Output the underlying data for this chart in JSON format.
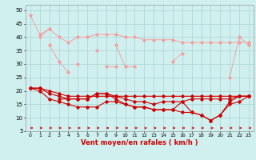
{
  "title": "",
  "xlabel": "Vent moyen/en rafales ( km/h )",
  "ylabel": "",
  "background_color": "#d0f0f0",
  "grid_color": "#b0d8d8",
  "x": [
    0,
    1,
    2,
    3,
    4,
    5,
    6,
    7,
    8,
    9,
    10,
    11,
    12,
    13,
    14,
    15,
    16,
    17,
    18,
    19,
    20,
    21,
    22,
    23
  ],
  "lines_pink": [
    [
      48,
      41,
      43,
      null,
      null,
      null,
      null,
      null,
      null,
      null,
      null,
      null,
      null,
      null,
      null,
      null,
      null,
      null,
      null,
      null,
      null,
      null,
      38,
      null
    ],
    [
      null,
      40,
      43,
      40,
      38,
      40,
      40,
      41,
      41,
      41,
      40,
      40,
      39,
      39,
      39,
      39,
      38,
      38,
      38,
      38,
      38,
      38,
      38,
      38
    ],
    [
      null,
      null,
      37,
      31,
      27,
      null,
      null,
      35,
      null,
      37,
      29,
      29,
      null,
      null,
      null,
      31,
      34,
      null,
      null,
      null,
      null,
      25,
      40,
      37
    ],
    [
      null,
      null,
      null,
      null,
      null,
      30,
      null,
      null,
      29,
      29,
      null,
      null,
      null,
      null,
      null,
      null,
      null,
      null,
      null,
      null,
      null,
      null,
      null,
      null
    ]
  ],
  "lines_red": [
    [
      21,
      21,
      20,
      19,
      18,
      18,
      18,
      18,
      18,
      18,
      18,
      18,
      18,
      18,
      18,
      18,
      18,
      18,
      18,
      18,
      18,
      18,
      18,
      18
    ],
    [
      21,
      21,
      19,
      18,
      17,
      17,
      17,
      19,
      19,
      17,
      15,
      14,
      14,
      13,
      13,
      13,
      12,
      12,
      11,
      9,
      11,
      16,
      18,
      18
    ],
    [
      21,
      20,
      17,
      16,
      15,
      14,
      14,
      14,
      16,
      16,
      15,
      14,
      14,
      13,
      13,
      13,
      16,
      12,
      11,
      9,
      11,
      15,
      16,
      18
    ],
    [
      null,
      null,
      null,
      17,
      17,
      17,
      17,
      19,
      19,
      18,
      17,
      16,
      16,
      15,
      16,
      16,
      16,
      17,
      17,
      17,
      17,
      17,
      18,
      18
    ]
  ],
  "ylim": [
    5,
    52
  ],
  "yticks": [
    5,
    10,
    15,
    20,
    25,
    30,
    35,
    40,
    45,
    50
  ],
  "xticks": [
    0,
    1,
    2,
    3,
    4,
    5,
    6,
    7,
    8,
    9,
    10,
    11,
    12,
    13,
    14,
    15,
    16,
    17,
    18,
    19,
    20,
    21,
    22,
    23
  ],
  "pink_color": "#f4a0a0",
  "red_color": "#cc0000",
  "arrow_color": "#cc0000"
}
